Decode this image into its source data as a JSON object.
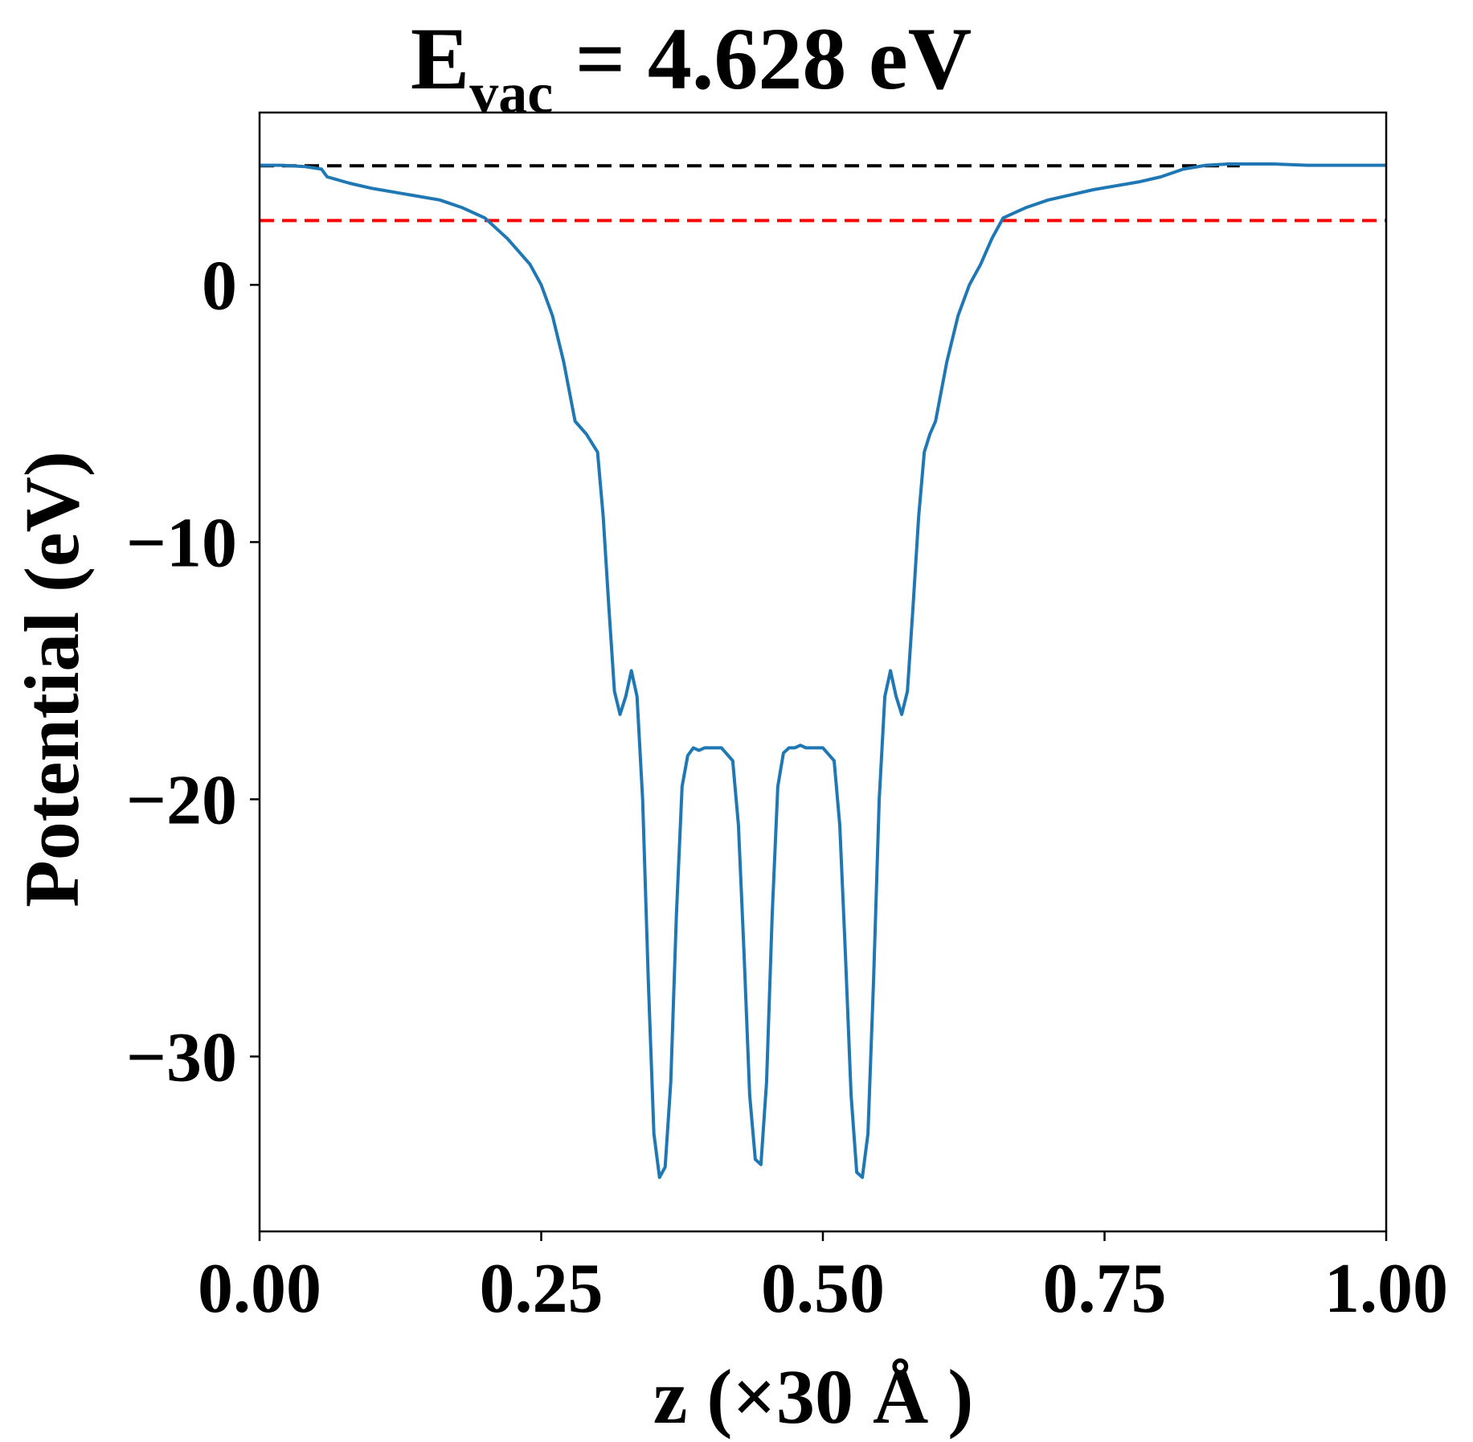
{
  "chart_data": {
    "type": "line",
    "title": {
      "main": "E",
      "subscript": "vac",
      "rest": " = 4.628 eV"
    },
    "xlabel": "z (×30 Å )",
    "ylabel": "Potential (eV)",
    "xlim": [
      0,
      1
    ],
    "ylim": [
      -36.8,
      6.7
    ],
    "xticks": [
      0,
      0.25,
      0.5,
      0.75,
      1.0
    ],
    "xtick_labels": [
      "0.00",
      "0.25",
      "0.50",
      "0.75",
      "1.00"
    ],
    "yticks": [
      0,
      -10,
      -20,
      -30
    ],
    "ytick_labels": [
      "0",
      "−10",
      "−20",
      "−30"
    ],
    "grid": false,
    "colors": {
      "potential": "#1f77b4",
      "vacuum_level": "#000000",
      "fermi_level": "#ff0000"
    },
    "reference_lines": [
      {
        "y": 4.628,
        "color": "#000000",
        "style": "dashed",
        "x_range": [
          0,
          0.87
        ]
      },
      {
        "y": 2.5,
        "color": "#ff0000",
        "style": "dashed",
        "x_range": [
          0,
          1
        ]
      }
    ],
    "series": [
      {
        "x": [
          0.0,
          0.02,
          0.04,
          0.055,
          0.06,
          0.08,
          0.1,
          0.12,
          0.14,
          0.16,
          0.18,
          0.2,
          0.22,
          0.24,
          0.25,
          0.26,
          0.27,
          0.28,
          0.29,
          0.3,
          0.305,
          0.31,
          0.315,
          0.32,
          0.325,
          0.33,
          0.335,
          0.34,
          0.345,
          0.35,
          0.355,
          0.36,
          0.365,
          0.37,
          0.375,
          0.38,
          0.385,
          0.39,
          0.395,
          0.4,
          0.41,
          0.42,
          0.425,
          0.43,
          0.435,
          0.44,
          0.445,
          0.45,
          0.455,
          0.46,
          0.465,
          0.47,
          0.475,
          0.48,
          0.485,
          0.49,
          0.5,
          0.51,
          0.515,
          0.52,
          0.525,
          0.53,
          0.535,
          0.54,
          0.545,
          0.55,
          0.555,
          0.56,
          0.565,
          0.57,
          0.575,
          0.58,
          0.585,
          0.59,
          0.595,
          0.6,
          0.61,
          0.62,
          0.63,
          0.64,
          0.65,
          0.66,
          0.68,
          0.7,
          0.72,
          0.74,
          0.76,
          0.78,
          0.8,
          0.82,
          0.84,
          0.86,
          0.87,
          0.9,
          0.93,
          0.96,
          1.0
        ],
        "y": [
          4.65,
          4.65,
          4.6,
          4.5,
          4.2,
          3.95,
          3.75,
          3.6,
          3.45,
          3.3,
          3.0,
          2.6,
          1.8,
          0.8,
          0.0,
          -1.2,
          -3.0,
          -5.3,
          -5.8,
          -6.5,
          -9.0,
          -12.5,
          -15.8,
          -16.7,
          -16.0,
          -15.0,
          -16.0,
          -20.0,
          -27.0,
          -33.0,
          -34.7,
          -34.3,
          -31.0,
          -24.5,
          -19.5,
          -18.3,
          -18.0,
          -18.1,
          -18.0,
          -18.0,
          -18.0,
          -18.5,
          -21.0,
          -26.0,
          -31.5,
          -34.0,
          -34.2,
          -31.0,
          -24.5,
          -19.5,
          -18.2,
          -18.0,
          -18.0,
          -17.9,
          -18.0,
          -18.0,
          -18.0,
          -18.5,
          -21.0,
          -26.0,
          -31.5,
          -34.5,
          -34.7,
          -33.0,
          -27.0,
          -20.0,
          -16.0,
          -15.0,
          -16.0,
          -16.7,
          -15.8,
          -12.5,
          -9.0,
          -6.5,
          -5.8,
          -5.3,
          -3.0,
          -1.2,
          0.0,
          0.8,
          1.8,
          2.6,
          3.0,
          3.3,
          3.5,
          3.7,
          3.85,
          4.0,
          4.2,
          4.5,
          4.65,
          4.7,
          4.7,
          4.7,
          4.65,
          4.65,
          4.65
        ]
      }
    ]
  }
}
